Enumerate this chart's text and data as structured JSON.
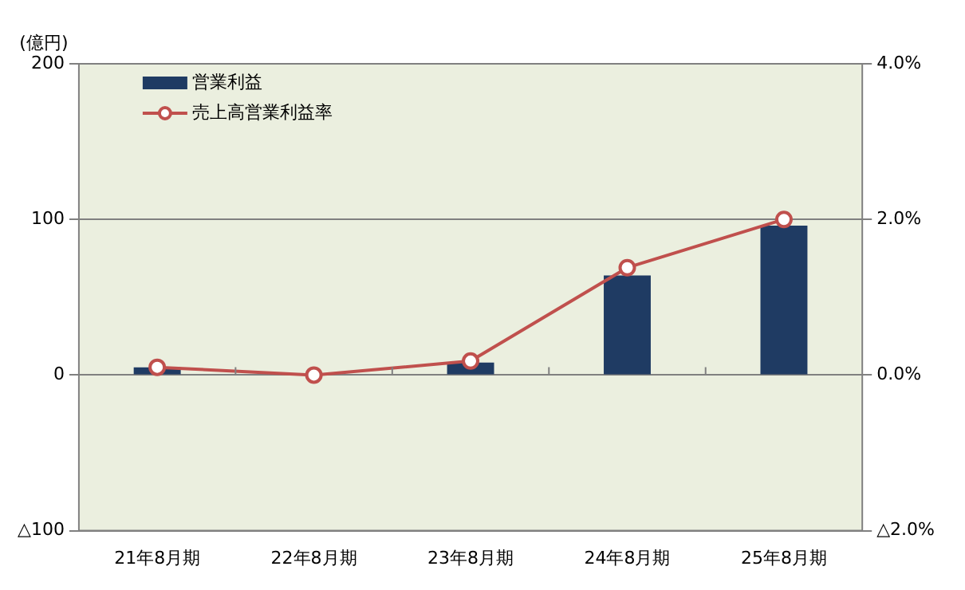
{
  "chart_data": {
    "type": "bar",
    "ylabel": "(億円)",
    "categories": [
      "21年8月期",
      "22年8月期",
      "23年8月期",
      "24年8月期",
      "25年8月期"
    ],
    "series": [
      {
        "name": "営業利益",
        "color": "#1f3b63",
        "values": [
          5,
          0,
          8,
          64,
          96
        ]
      },
      {
        "name": "売上高営業利益率",
        "type": "line",
        "axis": "y2",
        "color": "#c0504d",
        "marker": "circle",
        "values": [
          0.1,
          0,
          0.18,
          1.38,
          2.0
        ]
      }
    ],
    "ylim": [
      -100,
      200
    ],
    "yticks": [
      {
        "value": -100,
        "label": "△100"
      },
      0,
      100,
      200
    ],
    "y2lim": [
      -2,
      4
    ],
    "y2ticks": [
      {
        "value": -2,
        "label": "△2.0%"
      },
      {
        "value": 0,
        "label": "0.0%"
      },
      {
        "value": 2,
        "label": "2.0%"
      },
      {
        "value": 4,
        "label": "4.0%"
      }
    ],
    "grid": "y",
    "legend": "top left"
  }
}
